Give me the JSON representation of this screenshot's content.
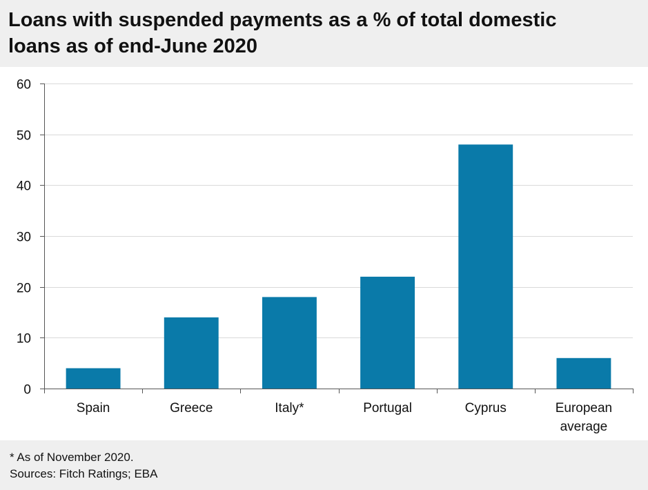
{
  "chart_data": {
    "type": "bar",
    "title_lines": [
      "Loans with suspended payments as a % of total domestic",
      "loans as of end-June 2020"
    ],
    "categories": [
      [
        "Spain"
      ],
      [
        "Greece"
      ],
      [
        "Italy*"
      ],
      [
        "Portugal"
      ],
      [
        "Cyprus"
      ],
      [
        "European",
        "average"
      ]
    ],
    "values": [
      4,
      14,
      18,
      22,
      48,
      6
    ],
    "ylim": [
      0,
      60
    ],
    "yticks": [
      0,
      10,
      20,
      30,
      40,
      50,
      60
    ],
    "ytick_labels": [
      "0",
      "10",
      "20",
      "30",
      "40",
      "50",
      "60"
    ],
    "xlabel": "",
    "ylabel": "",
    "grid": true,
    "bar_color": "#0a7aa9",
    "grid_color": "#d9d9d9"
  },
  "footer": {
    "note": "* As  of November 2020.",
    "sources": "Sources: Fitch Ratings; EBA"
  }
}
